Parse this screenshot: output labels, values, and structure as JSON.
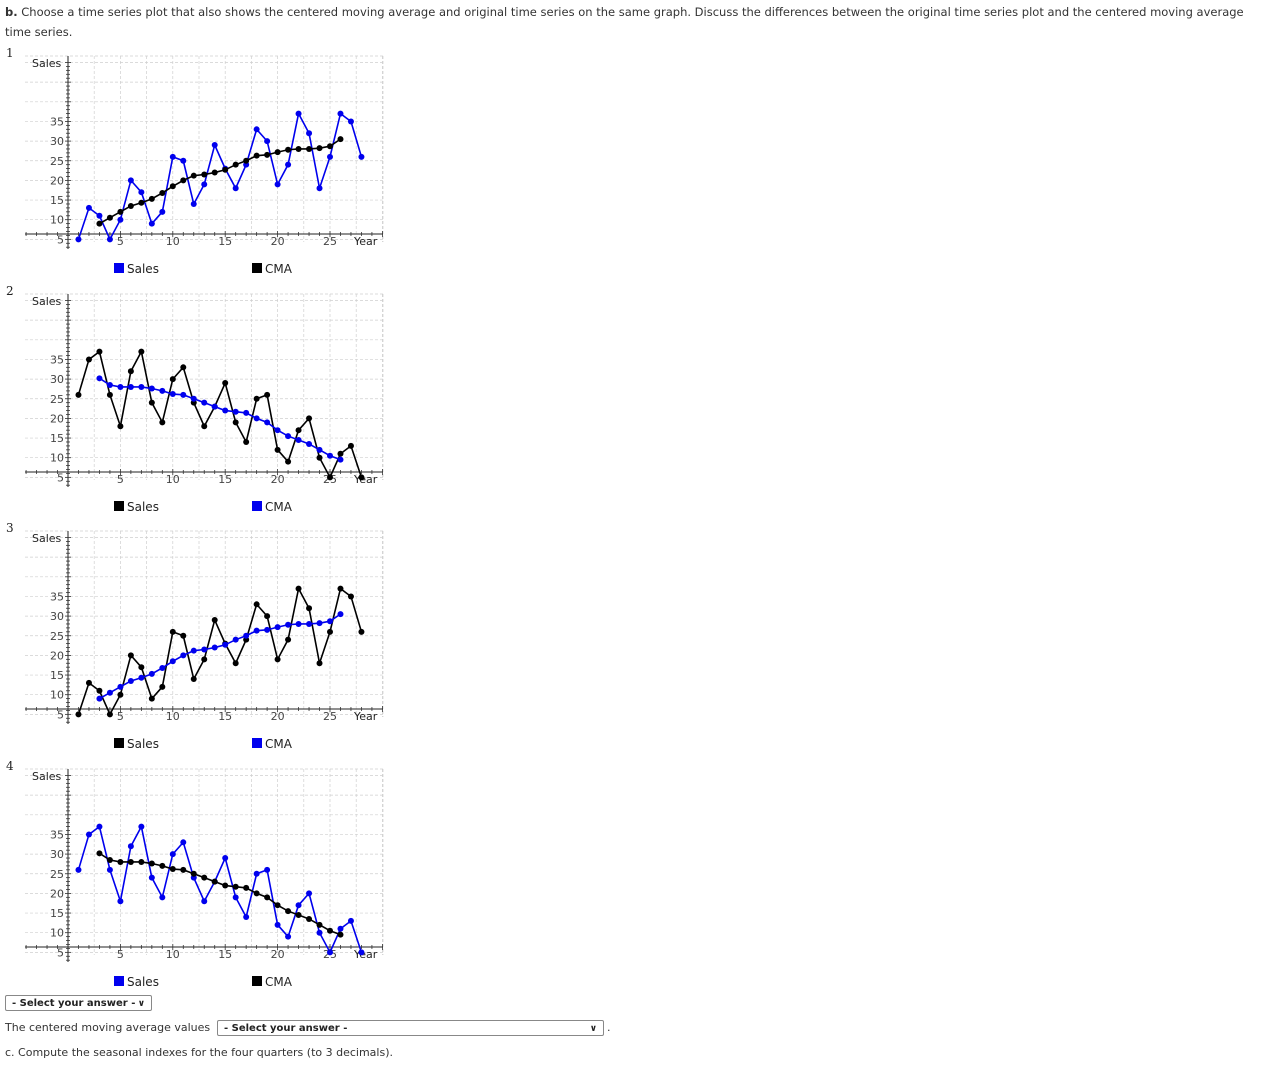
{
  "question_b": {
    "label": "b.",
    "text": " Choose a time series plot that also shows the centered moving average and original time series on the same graph. Discuss the differences between the original time series plot and the centered moving average time series."
  },
  "colors": {
    "black": "#000000",
    "blue": "#0000ee",
    "grid": "#c8c8c8"
  },
  "chart_data": [
    {
      "type": "line",
      "option": "1",
      "ylabel": "Sales",
      "xlabel": "Year",
      "xlim": [
        0,
        30
      ],
      "ylim": [
        0,
        40
      ],
      "xticks": [
        5,
        10,
        15,
        20,
        25
      ],
      "yticks": [
        5,
        10,
        15,
        20,
        25,
        30,
        35
      ],
      "grid": true,
      "series": [
        {
          "name": "Sales",
          "color": "#0000ee",
          "x": [
            1,
            2,
            3,
            4,
            5,
            6,
            7,
            8,
            9,
            10,
            11,
            12,
            13,
            14,
            15,
            16,
            17,
            18,
            19,
            20,
            21,
            22,
            23,
            24,
            25,
            26,
            27,
            28
          ],
          "y": [
            5,
            13,
            11,
            5,
            10,
            20,
            17,
            9,
            12,
            26,
            25,
            14,
            19,
            29,
            23,
            18,
            24,
            33,
            30,
            19,
            24,
            37,
            32,
            18,
            26,
            37,
            35,
            26
          ]
        },
        {
          "name": "CMA",
          "color": "#000000",
          "x": [
            3,
            4,
            5,
            6,
            7,
            8,
            9,
            10,
            11,
            12,
            13,
            14,
            15,
            16,
            17,
            18,
            19,
            20,
            21,
            22,
            23,
            24,
            25,
            26
          ],
          "y": [
            9,
            10.5,
            12,
            13.5,
            14.3,
            15.3,
            16.8,
            18.5,
            20,
            21.2,
            21.5,
            22,
            22.7,
            24,
            25,
            26.3,
            26.5,
            27.2,
            27.8,
            28,
            28,
            28.2,
            28.7,
            30.5
          ]
        }
      ],
      "legend": [
        "Sales",
        "CMA"
      ],
      "legend_placement": "bottom"
    },
    {
      "type": "line",
      "option": "2",
      "ylabel": "Sales",
      "xlabel": "Year",
      "xlim": [
        0,
        30
      ],
      "ylim": [
        0,
        40
      ],
      "xticks": [
        5,
        10,
        15,
        20,
        25
      ],
      "yticks": [
        5,
        10,
        15,
        20,
        25,
        30,
        35
      ],
      "grid": true,
      "series": [
        {
          "name": "Sales",
          "color": "#000000",
          "x": [
            1,
            2,
            3,
            4,
            5,
            6,
            7,
            8,
            9,
            10,
            11,
            12,
            13,
            14,
            15,
            16,
            17,
            18,
            19,
            20,
            21,
            22,
            23,
            24,
            25,
            26,
            27,
            28
          ],
          "y": [
            26,
            35,
            37,
            26,
            18,
            32,
            37,
            24,
            19,
            30,
            33,
            24,
            18,
            23,
            29,
            19,
            14,
            25,
            26,
            12,
            9,
            17,
            20,
            10,
            5,
            11,
            13,
            5
          ]
        },
        {
          "name": "CMA",
          "color": "#0000ee",
          "x": [
            3,
            4,
            5,
            6,
            7,
            8,
            9,
            10,
            11,
            12,
            13,
            14,
            15,
            16,
            17,
            18,
            19,
            20,
            21,
            22,
            23,
            24,
            25,
            26
          ],
          "y": [
            30.2,
            28.5,
            28,
            28,
            28,
            27.6,
            27,
            26.2,
            26,
            25,
            24,
            23,
            22,
            21.7,
            21.4,
            20,
            19,
            17,
            15.5,
            14.5,
            13.5,
            12,
            10.5,
            9.5
          ]
        }
      ],
      "legend": [
        "Sales",
        "CMA"
      ],
      "legend_placement": "bottom"
    },
    {
      "type": "line",
      "option": "3",
      "ylabel": "Sales",
      "xlabel": "Year",
      "xlim": [
        0,
        30
      ],
      "ylim": [
        0,
        40
      ],
      "xticks": [
        5,
        10,
        15,
        20,
        25
      ],
      "yticks": [
        5,
        10,
        15,
        20,
        25,
        30,
        35
      ],
      "grid": true,
      "series": [
        {
          "name": "Sales",
          "color": "#000000",
          "x": [
            1,
            2,
            3,
            4,
            5,
            6,
            7,
            8,
            9,
            10,
            11,
            12,
            13,
            14,
            15,
            16,
            17,
            18,
            19,
            20,
            21,
            22,
            23,
            24,
            25,
            26,
            27,
            28
          ],
          "y": [
            5,
            13,
            11,
            5,
            10,
            20,
            17,
            9,
            12,
            26,
            25,
            14,
            19,
            29,
            23,
            18,
            24,
            33,
            30,
            19,
            24,
            37,
            32,
            18,
            26,
            37,
            35,
            26
          ]
        },
        {
          "name": "CMA",
          "color": "#0000ee",
          "x": [
            3,
            4,
            5,
            6,
            7,
            8,
            9,
            10,
            11,
            12,
            13,
            14,
            15,
            16,
            17,
            18,
            19,
            20,
            21,
            22,
            23,
            24,
            25,
            26
          ],
          "y": [
            9,
            10.5,
            12,
            13.5,
            14.3,
            15.3,
            16.8,
            18.5,
            20,
            21.2,
            21.5,
            22,
            22.7,
            24,
            25,
            26.3,
            26.5,
            27.2,
            27.8,
            28,
            28,
            28.2,
            28.7,
            30.5
          ]
        }
      ],
      "legend": [
        "Sales",
        "CMA"
      ],
      "legend_placement": "bottom"
    },
    {
      "type": "line",
      "option": "4",
      "ylabel": "Sales",
      "xlabel": "Year",
      "xlim": [
        0,
        30
      ],
      "ylim": [
        0,
        40
      ],
      "xticks": [
        5,
        10,
        15,
        20,
        25
      ],
      "yticks": [
        5,
        10,
        15,
        20,
        25,
        30,
        35
      ],
      "grid": true,
      "series": [
        {
          "name": "Sales",
          "color": "#0000ee",
          "x": [
            1,
            2,
            3,
            4,
            5,
            6,
            7,
            8,
            9,
            10,
            11,
            12,
            13,
            14,
            15,
            16,
            17,
            18,
            19,
            20,
            21,
            22,
            23,
            24,
            25,
            26,
            27,
            28
          ],
          "y": [
            26,
            35,
            37,
            26,
            18,
            32,
            37,
            24,
            19,
            30,
            33,
            24,
            18,
            23,
            29,
            19,
            14,
            25,
            26,
            12,
            9,
            17,
            20,
            10,
            5,
            11,
            13,
            5
          ]
        },
        {
          "name": "CMA",
          "color": "#000000",
          "x": [
            3,
            4,
            5,
            6,
            7,
            8,
            9,
            10,
            11,
            12,
            13,
            14,
            15,
            16,
            17,
            18,
            19,
            20,
            21,
            22,
            23,
            24,
            25,
            26
          ],
          "y": [
            30.2,
            28.5,
            28,
            28,
            28,
            27.6,
            27,
            26.2,
            26,
            25,
            24,
            23,
            22,
            21.7,
            21.4,
            20,
            19,
            17,
            15.5,
            14.5,
            13.5,
            12,
            10.5,
            9.5
          ]
        }
      ],
      "legend": [
        "Sales",
        "CMA"
      ],
      "legend_placement": "bottom"
    }
  ],
  "answer_select": {
    "value": "- Select your answer -"
  },
  "cma_sentence": {
    "prefix": "The centered moving average values",
    "select_value": "- Select your answer -",
    "suffix": "."
  },
  "question_c": {
    "label": "c.",
    "text": " Compute the seasonal indexes for the four quarters (to 3 decimals)."
  }
}
